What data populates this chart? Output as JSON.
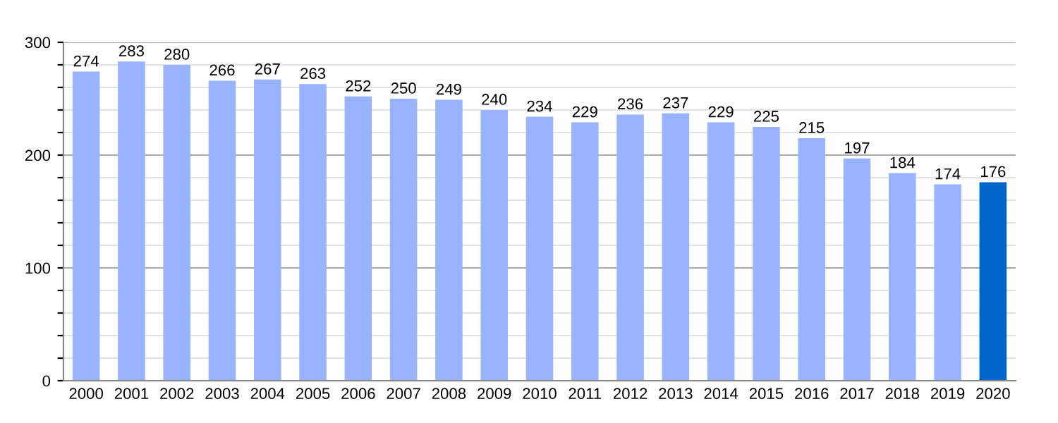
{
  "chart_data": {
    "type": "bar",
    "categories": [
      "2000",
      "2001",
      "2002",
      "2003",
      "2004",
      "2005",
      "2006",
      "2007",
      "2008",
      "2009",
      "2010",
      "2011",
      "2012",
      "2013",
      "2014",
      "2015",
      "2016",
      "2017",
      "2018",
      "2019",
      "2020"
    ],
    "values": [
      274,
      283,
      280,
      266,
      267,
      263,
      252,
      250,
      249,
      240,
      234,
      229,
      236,
      237,
      229,
      225,
      215,
      197,
      184,
      174,
      176
    ],
    "colors": [
      "#99b3ff",
      "#99b3ff",
      "#99b3ff",
      "#99b3ff",
      "#99b3ff",
      "#99b3ff",
      "#99b3ff",
      "#99b3ff",
      "#99b3ff",
      "#99b3ff",
      "#99b3ff",
      "#99b3ff",
      "#99b3ff",
      "#99b3ff",
      "#99b3ff",
      "#99b3ff",
      "#99b3ff",
      "#99b3ff",
      "#99b3ff",
      "#99b3ff",
      "#0066cc"
    ],
    "ylim": [
      0,
      300
    ],
    "yticks": [
      0,
      {
        "value": 20,
        "label": null
      },
      {
        "value": 40,
        "label": null
      },
      {
        "value": 60,
        "label": null
      },
      {
        "value": 80,
        "label": null
      },
      100,
      {
        "value": 120,
        "label": null
      },
      {
        "value": 140,
        "label": null
      },
      {
        "value": 160,
        "label": null
      },
      {
        "value": 180,
        "label": null
      },
      200,
      {
        "value": 220,
        "label": null
      },
      {
        "value": 240,
        "label": null
      },
      {
        "value": 260,
        "label": null
      },
      {
        "value": 280,
        "label": null
      },
      300
    ],
    "grid": "y",
    "data_labels": true
  }
}
